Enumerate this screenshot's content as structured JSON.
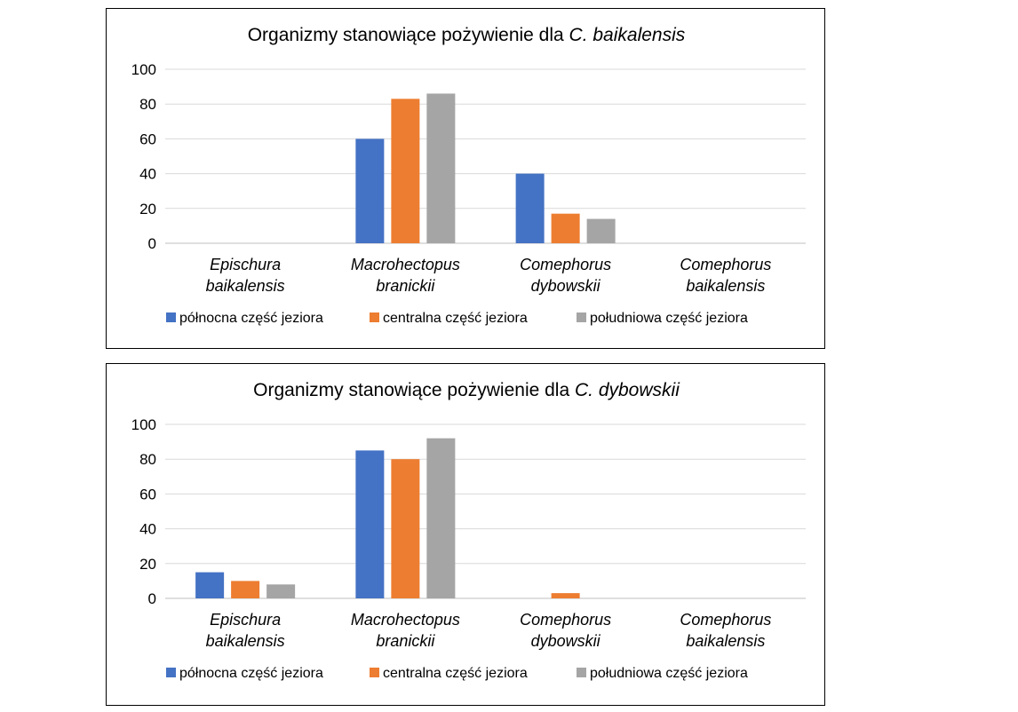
{
  "chart_data": [
    {
      "type": "bar",
      "title": "Organizmy stanowiące pożywienie dla",
      "title_species": "C. baikalensis",
      "categories": [
        [
          "Epischura",
          "baikalensis"
        ],
        [
          "Macrohectopus",
          "branickii"
        ],
        [
          "Comephorus",
          "dybowskii"
        ],
        [
          "Comephorus",
          "baikalensis"
        ]
      ],
      "series": [
        {
          "name": "północna część jeziora",
          "color": "#4472C4",
          "values": [
            0,
            60,
            40,
            0
          ]
        },
        {
          "name": "centralna część jeziora",
          "color": "#ED7D31",
          "values": [
            0,
            83,
            17,
            0
          ]
        },
        {
          "name": "południowa część jeziora",
          "color": "#A5A5A5",
          "values": [
            0,
            86,
            14,
            0
          ]
        }
      ],
      "ylim": [
        0,
        100
      ],
      "yticks": [
        "0",
        "20",
        "40",
        "60",
        "80",
        "100"
      ],
      "grid": true,
      "legend_position": "bottom"
    },
    {
      "type": "bar",
      "title": "Organizmy stanowiące pożywienie dla",
      "title_species": "C. dybowskii",
      "categories": [
        [
          "Epischura",
          "baikalensis"
        ],
        [
          "Macrohectopus",
          "branickii"
        ],
        [
          "Comephorus",
          "dybowskii"
        ],
        [
          "Comephorus",
          "baikalensis"
        ]
      ],
      "series": [
        {
          "name": "północna część jeziora",
          "color": "#4472C4",
          "values": [
            15,
            85,
            0,
            0
          ]
        },
        {
          "name": "centralna część jeziora",
          "color": "#ED7D31",
          "values": [
            10,
            80,
            3,
            0
          ]
        },
        {
          "name": "południowa część jeziora",
          "color": "#A5A5A5",
          "values": [
            8,
            92,
            0,
            0
          ]
        }
      ],
      "ylim": [
        0,
        100
      ],
      "yticks": [
        "0",
        "20",
        "40",
        "60",
        "80",
        "100"
      ],
      "grid": true,
      "legend_position": "bottom"
    }
  ]
}
